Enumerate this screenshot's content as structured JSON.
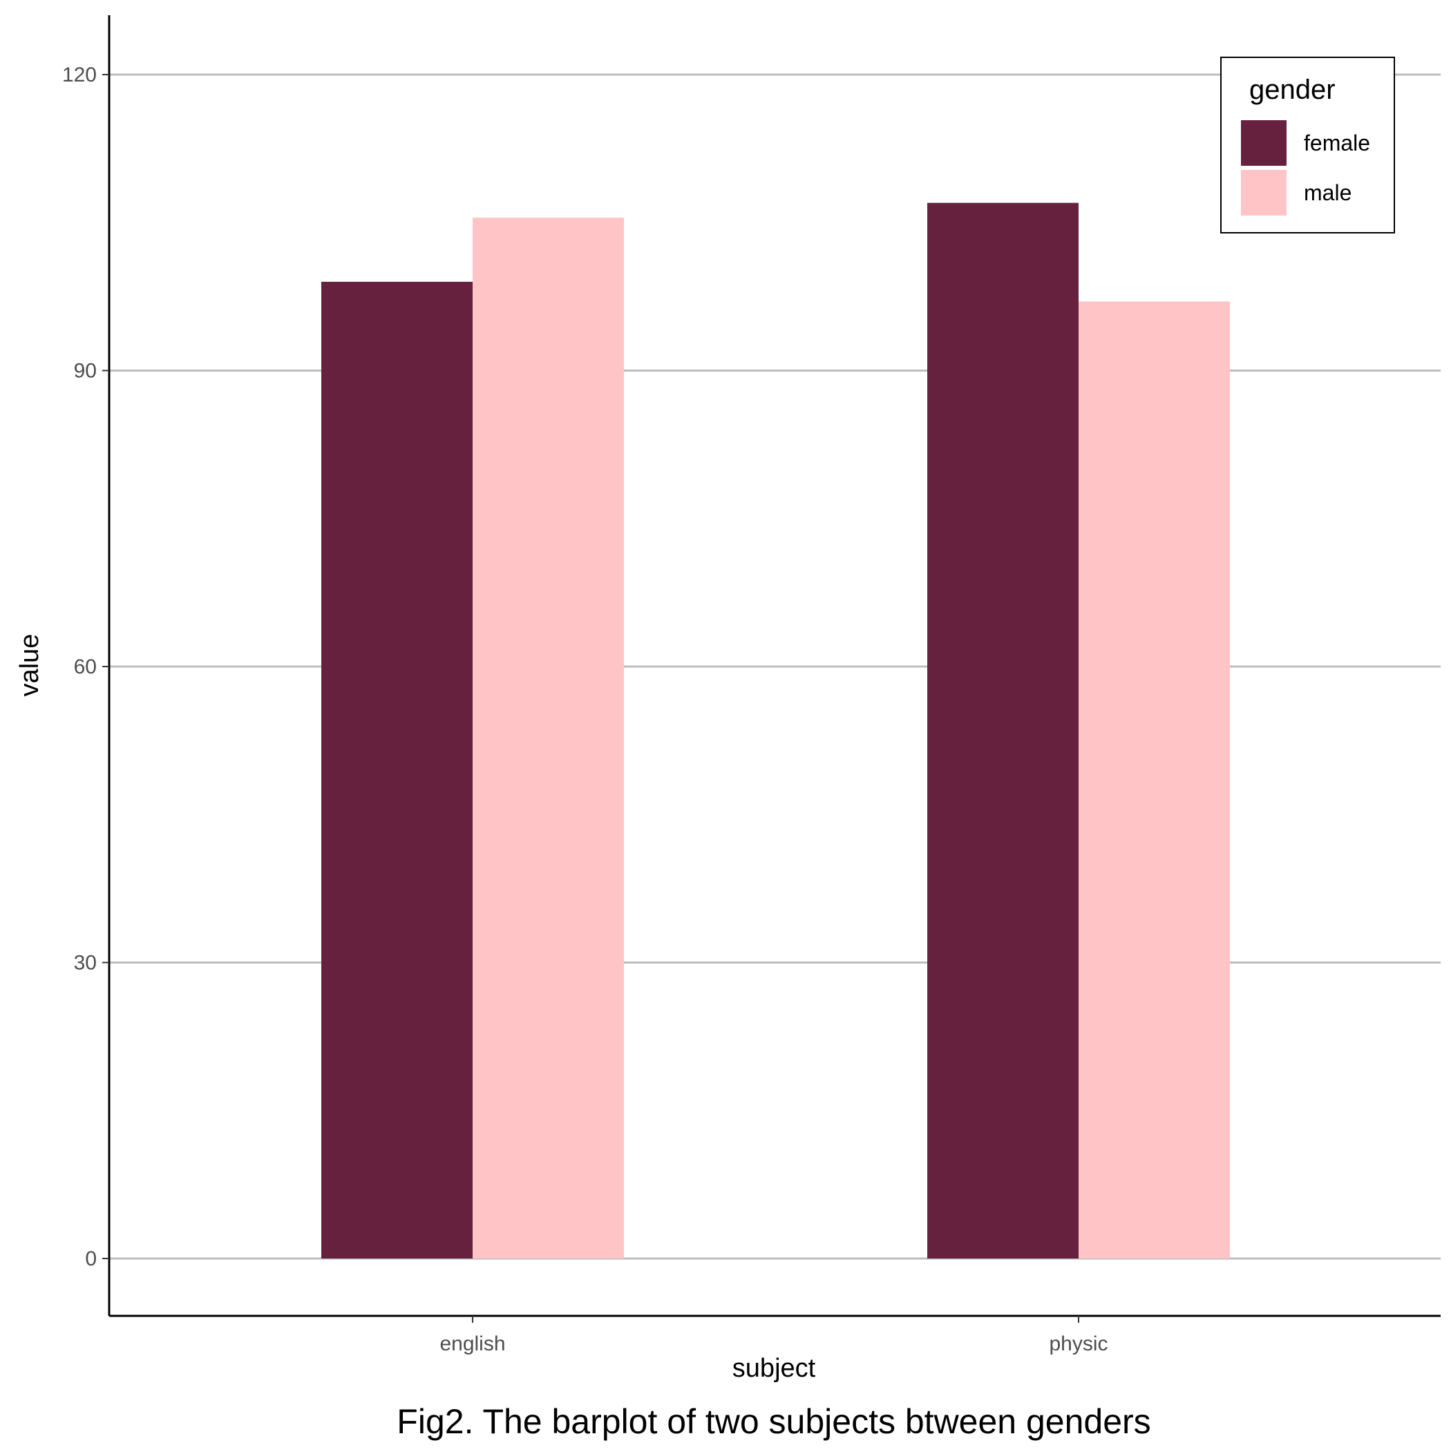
{
  "chart_data": {
    "type": "bar",
    "categories": [
      "english",
      "physic"
    ],
    "series": [
      {
        "name": "female",
        "values": [
          99,
          107
        ]
      },
      {
        "name": "male",
        "values": [
          105.5,
          97
        ]
      }
    ],
    "xlabel": "subject",
    "ylabel": "value",
    "caption": "Fig2. The barplot of two subjects btween genders",
    "ylim": [
      -6,
      126
    ],
    "yticks": [
      0,
      30,
      60,
      90,
      120
    ],
    "grid": "horizontal major",
    "legend": {
      "title": "gender",
      "placement": "top-right",
      "entries": [
        "female",
        "male"
      ]
    },
    "colors": {
      "female": "#66213e",
      "male": "#fec4c6",
      "grid": "#bdbdbd",
      "axis": "#000000"
    }
  }
}
